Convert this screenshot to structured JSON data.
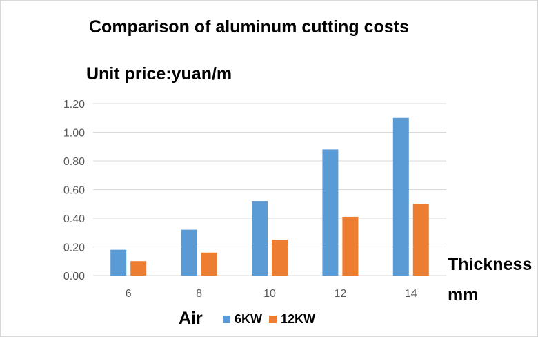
{
  "chart_data": {
    "type": "bar",
    "title": "Comparison of aluminum cutting costs",
    "ylabel": "Unit price:yuan/m",
    "xlabel_line1": "Thickness",
    "xlabel_line2": "mm",
    "note": "Air",
    "categories": [
      "6",
      "8",
      "10",
      "12",
      "14"
    ],
    "series": [
      {
        "name": "6KW",
        "color": "#5b9bd5",
        "values": [
          0.18,
          0.32,
          0.52,
          0.88,
          1.1
        ]
      },
      {
        "name": "12KW",
        "color": "#ed7d31",
        "values": [
          0.1,
          0.16,
          0.25,
          0.41,
          0.5
        ]
      }
    ],
    "yticks": [
      "0.00",
      "0.20",
      "0.40",
      "0.60",
      "0.80",
      "1.00",
      "1.20"
    ],
    "ylim": [
      0,
      1.2
    ],
    "grid": true,
    "legend_position": "bottom"
  }
}
